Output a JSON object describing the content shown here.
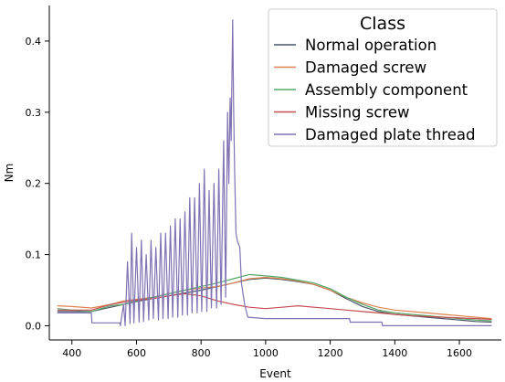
{
  "chart_data": {
    "type": "line",
    "xlabel": "Event",
    "ylabel": "Nm",
    "xlim": [
      330,
      1730
    ],
    "ylim": [
      -0.02,
      0.45
    ],
    "x_ticks": [
      400,
      600,
      800,
      1000,
      1200,
      1400,
      1600
    ],
    "y_ticks": [
      0.0,
      0.1,
      0.2,
      0.3,
      0.4
    ],
    "x_tick_labels": [
      "400",
      "600",
      "800",
      "1000",
      "1200",
      "1400",
      "1600"
    ],
    "y_tick_labels": [
      "0.0",
      "0.1",
      "0.2",
      "0.3",
      "0.4"
    ],
    "grid": false,
    "legend": {
      "title": "Class",
      "placement": "top-right",
      "entries": [
        "Normal operation",
        "Damaged screw",
        "Assembly component",
        "Missing screw",
        "Damaged plate thread"
      ]
    },
    "series": [
      {
        "name": "Normal operation",
        "color": "#4c5566",
        "points": [
          [
            355,
            0.02
          ],
          [
            460,
            0.02
          ],
          [
            520,
            0.026
          ],
          [
            560,
            0.03
          ],
          [
            600,
            0.034
          ],
          [
            650,
            0.038
          ],
          [
            700,
            0.042
          ],
          [
            750,
            0.046
          ],
          [
            800,
            0.05
          ],
          [
            850,
            0.055
          ],
          [
            900,
            0.06
          ],
          [
            950,
            0.065
          ],
          [
            1000,
            0.067
          ],
          [
            1050,
            0.065
          ],
          [
            1100,
            0.062
          ],
          [
            1150,
            0.058
          ],
          [
            1200,
            0.05
          ],
          [
            1250,
            0.038
          ],
          [
            1300,
            0.027
          ],
          [
            1350,
            0.02
          ],
          [
            1400,
            0.016
          ],
          [
            1450,
            0.014
          ],
          [
            1500,
            0.012
          ],
          [
            1550,
            0.01
          ],
          [
            1600,
            0.008
          ],
          [
            1650,
            0.006
          ],
          [
            1700,
            0.005
          ]
        ]
      },
      {
        "name": "Damaged screw",
        "color": "#dd8452",
        "points": [
          [
            355,
            0.028
          ],
          [
            400,
            0.027
          ],
          [
            460,
            0.025
          ],
          [
            520,
            0.03
          ],
          [
            560,
            0.035
          ],
          [
            600,
            0.037
          ],
          [
            650,
            0.04
          ],
          [
            700,
            0.045
          ],
          [
            750,
            0.05
          ],
          [
            800,
            0.053
          ],
          [
            850,
            0.055
          ],
          [
            900,
            0.06
          ],
          [
            950,
            0.066
          ],
          [
            1000,
            0.068
          ],
          [
            1050,
            0.066
          ],
          [
            1100,
            0.063
          ],
          [
            1150,
            0.058
          ],
          [
            1200,
            0.05
          ],
          [
            1250,
            0.04
          ],
          [
            1300,
            0.032
          ],
          [
            1350,
            0.026
          ],
          [
            1400,
            0.022
          ],
          [
            1450,
            0.02
          ],
          [
            1500,
            0.018
          ],
          [
            1550,
            0.016
          ],
          [
            1600,
            0.014
          ],
          [
            1650,
            0.012
          ],
          [
            1700,
            0.01
          ]
        ]
      },
      {
        "name": "Assembly component",
        "color": "#55a868",
        "points": [
          [
            355,
            0.024
          ],
          [
            400,
            0.022
          ],
          [
            460,
            0.02
          ],
          [
            520,
            0.028
          ],
          [
            560,
            0.03
          ],
          [
            600,
            0.035
          ],
          [
            650,
            0.04
          ],
          [
            700,
            0.045
          ],
          [
            750,
            0.05
          ],
          [
            800,
            0.055
          ],
          [
            850,
            0.06
          ],
          [
            900,
            0.066
          ],
          [
            950,
            0.072
          ],
          [
            1000,
            0.07
          ],
          [
            1050,
            0.068
          ],
          [
            1100,
            0.064
          ],
          [
            1150,
            0.06
          ],
          [
            1200,
            0.052
          ],
          [
            1250,
            0.04
          ],
          [
            1300,
            0.03
          ],
          [
            1350,
            0.022
          ],
          [
            1400,
            0.018
          ],
          [
            1450,
            0.016
          ],
          [
            1500,
            0.014
          ],
          [
            1550,
            0.012
          ],
          [
            1600,
            0.01
          ],
          [
            1650,
            0.008
          ],
          [
            1700,
            0.007
          ]
        ]
      },
      {
        "name": "Missing screw",
        "color": "#c44e52",
        "points": [
          [
            355,
            0.022
          ],
          [
            400,
            0.022
          ],
          [
            460,
            0.022
          ],
          [
            520,
            0.03
          ],
          [
            560,
            0.033
          ],
          [
            600,
            0.036
          ],
          [
            650,
            0.038
          ],
          [
            700,
            0.042
          ],
          [
            750,
            0.045
          ],
          [
            800,
            0.042
          ],
          [
            850,
            0.035
          ],
          [
            900,
            0.03
          ],
          [
            950,
            0.026
          ],
          [
            1000,
            0.024
          ],
          [
            1050,
            0.026
          ],
          [
            1100,
            0.028
          ],
          [
            1150,
            0.026
          ],
          [
            1200,
            0.024
          ],
          [
            1250,
            0.022
          ],
          [
            1300,
            0.02
          ],
          [
            1350,
            0.018
          ],
          [
            1400,
            0.016
          ],
          [
            1450,
            0.014
          ],
          [
            1500,
            0.013
          ],
          [
            1550,
            0.012
          ],
          [
            1600,
            0.011
          ],
          [
            1650,
            0.01
          ],
          [
            1700,
            0.009
          ]
        ]
      },
      {
        "name": "Damaged plate thread",
        "color": "#8172b3",
        "points": [
          [
            355,
            0.018
          ],
          [
            460,
            0.018
          ],
          [
            462,
            0.004
          ],
          [
            548,
            0.004
          ],
          [
            550,
            0.0
          ],
          [
            560,
            0.03
          ],
          [
            565,
            0.0
          ],
          [
            572,
            0.09
          ],
          [
            580,
            0.003
          ],
          [
            585,
            0.13
          ],
          [
            592,
            0.004
          ],
          [
            600,
            0.11
          ],
          [
            608,
            0.005
          ],
          [
            615,
            0.12
          ],
          [
            622,
            0.006
          ],
          [
            630,
            0.1
          ],
          [
            638,
            0.008
          ],
          [
            645,
            0.12
          ],
          [
            652,
            0.01
          ],
          [
            660,
            0.11
          ],
          [
            668,
            0.008
          ],
          [
            675,
            0.13
          ],
          [
            682,
            0.01
          ],
          [
            690,
            0.13
          ],
          [
            698,
            0.01
          ],
          [
            705,
            0.14
          ],
          [
            712,
            0.012
          ],
          [
            720,
            0.15
          ],
          [
            728,
            0.012
          ],
          [
            735,
            0.15
          ],
          [
            742,
            0.015
          ],
          [
            750,
            0.16
          ],
          [
            758,
            0.015
          ],
          [
            765,
            0.18
          ],
          [
            772,
            0.018
          ],
          [
            780,
            0.18
          ],
          [
            788,
            0.018
          ],
          [
            795,
            0.2
          ],
          [
            802,
            0.02
          ],
          [
            810,
            0.22
          ],
          [
            818,
            0.02
          ],
          [
            825,
            0.19
          ],
          [
            832,
            0.025
          ],
          [
            840,
            0.2
          ],
          [
            848,
            0.025
          ],
          [
            855,
            0.22
          ],
          [
            862,
            0.03
          ],
          [
            870,
            0.26
          ],
          [
            876,
            0.04
          ],
          [
            882,
            0.3
          ],
          [
            886,
            0.2
          ],
          [
            890,
            0.32
          ],
          [
            893,
            0.26
          ],
          [
            898,
            0.43
          ],
          [
            901,
            0.3
          ],
          [
            904,
            0.22
          ],
          [
            908,
            0.13
          ],
          [
            912,
            0.12
          ],
          [
            920,
            0.11
          ],
          [
            925,
            0.06
          ],
          [
            935,
            0.03
          ],
          [
            945,
            0.012
          ],
          [
            1000,
            0.01
          ],
          [
            1100,
            0.01
          ],
          [
            1200,
            0.01
          ],
          [
            1260,
            0.01
          ],
          [
            1262,
            0.005
          ],
          [
            1360,
            0.005
          ],
          [
            1362,
            0.0
          ],
          [
            1700,
            0.0
          ]
        ]
      }
    ]
  }
}
